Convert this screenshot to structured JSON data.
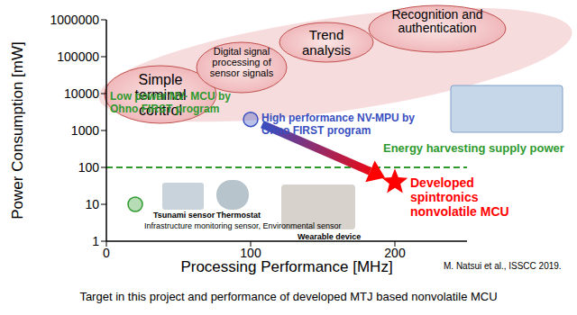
{
  "chart_data": {
    "type": "scatter",
    "x_label": "Processing Performance [MHz]",
    "y_label": "Power Consumption [mW]",
    "caption": "Target in this project and performance of developed MTJ based nonvolatile MCU",
    "source": "M. Natsui et al., ISSCC 2019.",
    "xlim": [
      0,
      250
    ],
    "xticks": [
      0,
      100,
      200
    ],
    "ylim": [
      1,
      1000000
    ],
    "yticks": [
      1,
      10,
      100,
      1000,
      10000,
      100000,
      1000000
    ],
    "log": "y",
    "grid": false,
    "series": [
      {
        "name": "Low power NV- MCU by Ohno FIRST program",
        "color": "#2e9a2e",
        "marker": "circle",
        "x": [
          20
        ],
        "values": [
          10
        ]
      },
      {
        "name": "High performance NV-MPU by Ohno FIRST program",
        "color": "#3a4fc0",
        "marker": "circle",
        "x": [
          100
        ],
        "values": [
          2000
        ]
      },
      {
        "name": "Developed spintronics nonvolatile MCU",
        "color": "#ff0000",
        "marker": "star",
        "x": [
          200
        ],
        "values": [
          40
        ]
      }
    ],
    "reference_line": {
      "value": 100,
      "label": "Energy harvesting supply power",
      "color": "#2e9a2e",
      "line_style": "dashed"
    },
    "annotations": [
      "Simple terminal control",
      "Digital signal processing of sensor signals",
      "Trend analysis",
      "Recognition and authentication"
    ],
    "applications": [
      "Tsunami sensor",
      "Thermostat",
      "Infrastructure monitoring sensor, Environmental sensor",
      "Wearable device"
    ]
  }
}
